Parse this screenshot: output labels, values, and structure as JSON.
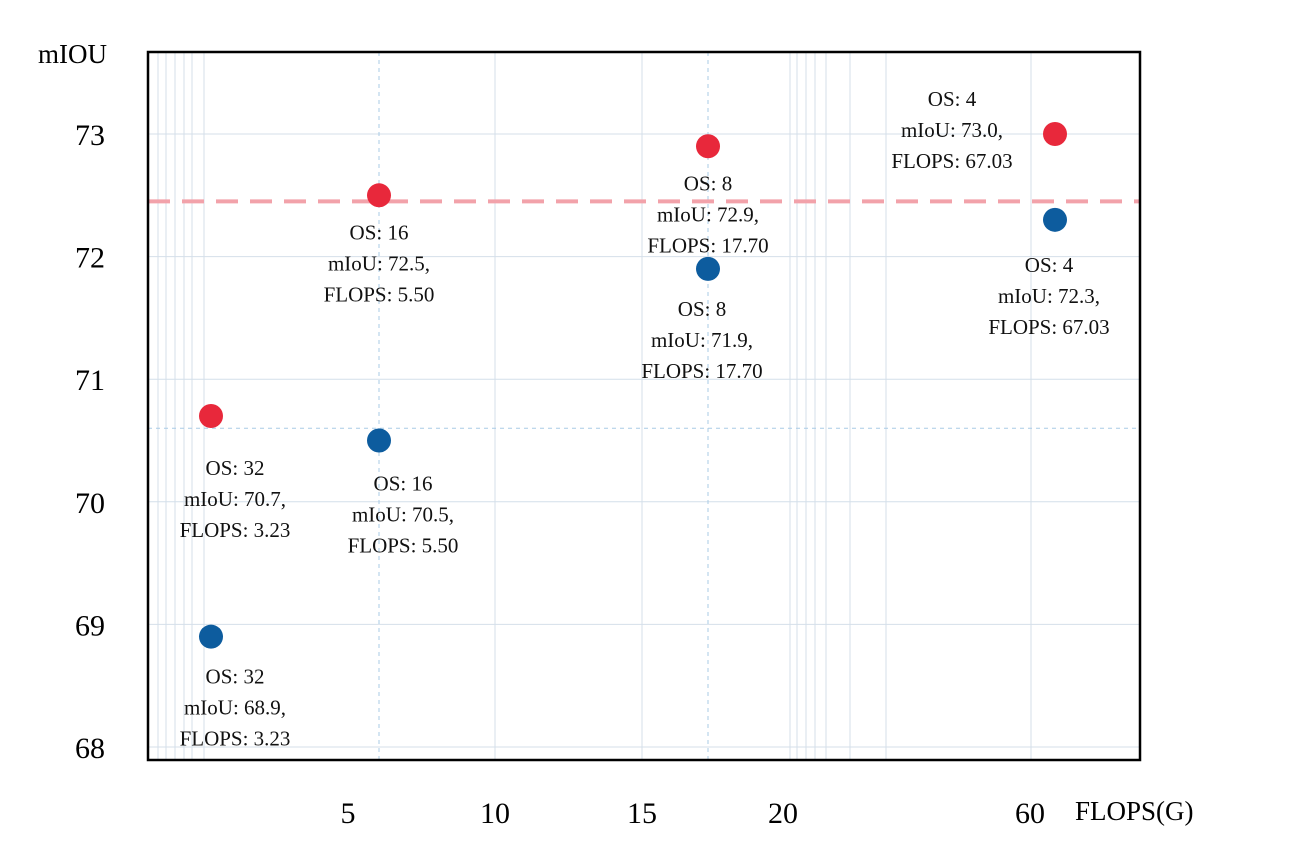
{
  "chart_data": {
    "type": "scatter",
    "ylabel": "mIOU",
    "xlabel": "FLOPS(G)",
    "ylim": [
      68,
      73.6
    ],
    "x_ticks": [
      "5",
      "10",
      "15",
      "20",
      "60"
    ],
    "y_ticks": [
      "68",
      "69",
      "70",
      "71",
      "72",
      "73"
    ],
    "reference_line_y": 72.45,
    "colors": {
      "red_series": "#e8283b",
      "blue_series": "#0d5c9e",
      "reference_line": "#f2a2aa",
      "grid": "#d4dfea"
    },
    "series": [
      {
        "color": "red",
        "points": [
          {
            "os": 32,
            "miou": 70.7,
            "flops": 3.23,
            "lines": [
              "OS: 32",
              "mIoU: 70.7,",
              "FLOPS: 3.23"
            ]
          },
          {
            "os": 16,
            "miou": 72.5,
            "flops": 5.5,
            "lines": [
              "OS: 16",
              "mIoU: 72.5,",
              "FLOPS: 5.50"
            ]
          },
          {
            "os": 8,
            "miou": 72.9,
            "flops": 17.7,
            "lines": [
              "OS: 8",
              "mIoU: 72.9,",
              "FLOPS: 17.70"
            ]
          },
          {
            "os": 4,
            "miou": 73.0,
            "flops": 67.03,
            "lines": [
              "OS: 4",
              "mIoU: 73.0,",
              "FLOPS: 67.03"
            ]
          }
        ]
      },
      {
        "color": "blue",
        "points": [
          {
            "os": 32,
            "miou": 68.9,
            "flops": 3.23,
            "lines": [
              "OS: 32",
              "mIoU: 68.9,",
              "FLOPS: 3.23"
            ]
          },
          {
            "os": 16,
            "miou": 70.5,
            "flops": 5.5,
            "lines": [
              "OS: 16",
              "mIoU: 70.5,",
              "FLOPS: 5.50"
            ]
          },
          {
            "os": 8,
            "miou": 71.9,
            "flops": 17.7,
            "lines": [
              "OS: 8",
              "mIoU: 71.9,",
              "FLOPS: 17.70"
            ]
          },
          {
            "os": 4,
            "miou": 72.3,
            "flops": 67.03,
            "lines": [
              "OS: 4",
              "mIoU: 72.3,",
              "FLOPS: 67.03"
            ]
          }
        ]
      }
    ]
  }
}
